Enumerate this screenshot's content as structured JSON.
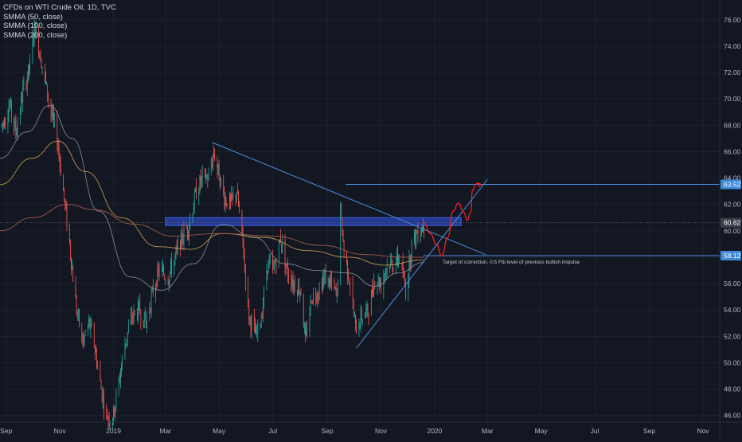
{
  "legend": {
    "title": "CFDs on WTI Crude Oil, 1D, TVC",
    "indicators": [
      "SMMA (50, close)",
      "SMMA (100, close)",
      "SMMA (200, close)"
    ]
  },
  "colors": {
    "background": "#131722",
    "grid": "#1e2230",
    "up": "#26a69a",
    "down": "#ef5350",
    "smma50": "#8a8d99",
    "smma100": "#c9a24e",
    "smma200": "#b0604c",
    "trendline": "#4e8fe0",
    "zone": "#2a45b8",
    "projection": "#ff2020",
    "badge": "#3d8bd9",
    "price_line": "#5a5f6e"
  },
  "chart_data": {
    "type": "candlestick",
    "symbol": "CFDs on WTI Crude Oil",
    "interval": "1D",
    "source": "TVC",
    "ylim": [
      45.5,
      77.5
    ],
    "y_ticks": [
      "76.00",
      "74.00",
      "72.00",
      "70.00",
      "68.00",
      "66.00",
      "64.00",
      "62.00",
      "60.00",
      "58.00",
      "56.00",
      "54.00",
      "52.00",
      "50.00",
      "48.00",
      "46.00"
    ],
    "x_range": [
      "2018-08-25",
      "2020-11-20"
    ],
    "x_ticks": [
      {
        "label": "Sep",
        "date": "2018-09-01"
      },
      {
        "label": "Nov",
        "date": "2018-11-01"
      },
      {
        "label": "2019",
        "date": "2019-01-01"
      },
      {
        "label": "Mar",
        "date": "2019-03-01"
      },
      {
        "label": "May",
        "date": "2019-05-01"
      },
      {
        "label": "Jul",
        "date": "2019-07-01"
      },
      {
        "label": "Sep",
        "date": "2019-09-01"
      },
      {
        "label": "Nov",
        "date": "2019-11-01"
      },
      {
        "label": "2020",
        "date": "2020-01-01"
      },
      {
        "label": "Mar",
        "date": "2020-03-01"
      },
      {
        "label": "May",
        "date": "2020-05-01"
      },
      {
        "label": "Jul",
        "date": "2020-07-01"
      },
      {
        "label": "Sep",
        "date": "2020-09-01"
      },
      {
        "label": "Nov",
        "date": "2020-11-01"
      }
    ],
    "price_path": [
      [
        "2018-08-27",
        68.0
      ],
      [
        "2018-09-05",
        69.5
      ],
      [
        "2018-09-12",
        67.5
      ],
      [
        "2018-09-20",
        70.5
      ],
      [
        "2018-09-28",
        72.5
      ],
      [
        "2018-10-03",
        75.5
      ],
      [
        "2018-10-08",
        74.0
      ],
      [
        "2018-10-15",
        71.5
      ],
      [
        "2018-10-22",
        69.0
      ],
      [
        "2018-10-29",
        67.0
      ],
      [
        "2018-11-05",
        63.0
      ],
      [
        "2018-11-12",
        59.0
      ],
      [
        "2018-11-20",
        54.0
      ],
      [
        "2018-11-27",
        51.5
      ],
      [
        "2018-12-04",
        53.0
      ],
      [
        "2018-12-10",
        51.5
      ],
      [
        "2018-12-18",
        48.0
      ],
      [
        "2018-12-24",
        46.0
      ],
      [
        "2018-12-31",
        45.8
      ],
      [
        "2019-01-07",
        48.5
      ],
      [
        "2019-01-14",
        51.5
      ],
      [
        "2019-01-22",
        53.5
      ],
      [
        "2019-01-30",
        54.0
      ],
      [
        "2019-02-07",
        53.0
      ],
      [
        "2019-02-15",
        55.5
      ],
      [
        "2019-02-22",
        57.0
      ],
      [
        "2019-03-04",
        56.5
      ],
      [
        "2019-03-12",
        58.0
      ],
      [
        "2019-03-20",
        59.5
      ],
      [
        "2019-03-28",
        60.5
      ],
      [
        "2019-04-05",
        63.0
      ],
      [
        "2019-04-12",
        64.0
      ],
      [
        "2019-04-19",
        64.0
      ],
      [
        "2019-04-25",
        66.0
      ],
      [
        "2019-04-30",
        64.5
      ],
      [
        "2019-05-07",
        62.5
      ],
      [
        "2019-05-14",
        62.0
      ],
      [
        "2019-05-21",
        63.0
      ],
      [
        "2019-05-28",
        59.0
      ],
      [
        "2019-06-04",
        53.5
      ],
      [
        "2019-06-12",
        52.0
      ],
      [
        "2019-06-18",
        53.5
      ],
      [
        "2019-06-25",
        57.5
      ],
      [
        "2019-07-02",
        57.0
      ],
      [
        "2019-07-10",
        59.5
      ],
      [
        "2019-07-17",
        57.0
      ],
      [
        "2019-07-25",
        56.0
      ],
      [
        "2019-08-02",
        55.5
      ],
      [
        "2019-08-07",
        51.5
      ],
      [
        "2019-08-14",
        55.0
      ],
      [
        "2019-08-22",
        55.5
      ],
      [
        "2019-08-29",
        56.5
      ],
      [
        "2019-09-05",
        56.0
      ],
      [
        "2019-09-12",
        55.0
      ],
      [
        "2019-09-16",
        61.5
      ],
      [
        "2019-09-20",
        58.5
      ],
      [
        "2019-09-27",
        56.0
      ],
      [
        "2019-10-03",
        52.5
      ],
      [
        "2019-10-10",
        53.5
      ],
      [
        "2019-10-18",
        54.0
      ],
      [
        "2019-10-25",
        56.5
      ],
      [
        "2019-11-01",
        56.0
      ],
      [
        "2019-11-08",
        57.5
      ],
      [
        "2019-11-15",
        57.5
      ],
      [
        "2019-11-22",
        58.0
      ],
      [
        "2019-11-29",
        55.5
      ],
      [
        "2019-12-06",
        59.0
      ],
      [
        "2019-12-13",
        60.0
      ],
      [
        "2019-12-20",
        60.5
      ]
    ],
    "smma": [
      {
        "name": "SMMA (50, close)",
        "points": [
          [
            "2018-08-25",
            65.5
          ],
          [
            "2018-09-25",
            67.5
          ],
          [
            "2018-10-20",
            69.5
          ],
          [
            "2018-11-15",
            67.0
          ],
          [
            "2018-12-15",
            61.5
          ],
          [
            "2019-01-20",
            56.5
          ],
          [
            "2019-02-25",
            55.5
          ],
          [
            "2019-04-01",
            57.5
          ],
          [
            "2019-05-05",
            60.5
          ],
          [
            "2019-06-10",
            59.5
          ],
          [
            "2019-07-15",
            57.5
          ],
          [
            "2019-08-20",
            57.0
          ],
          [
            "2019-09-25",
            56.8
          ],
          [
            "2019-10-25",
            55.8
          ],
          [
            "2019-11-20",
            56.8
          ],
          [
            "2019-12-20",
            57.6
          ]
        ]
      },
      {
        "name": "SMMA (100, close)",
        "points": [
          [
            "2018-08-25",
            63.5
          ],
          [
            "2018-09-30",
            65.5
          ],
          [
            "2018-10-30",
            66.8
          ],
          [
            "2018-11-30",
            64.5
          ],
          [
            "2019-01-10",
            61.0
          ],
          [
            "2019-02-20",
            58.8
          ],
          [
            "2019-03-30",
            58.6
          ],
          [
            "2019-05-05",
            59.8
          ],
          [
            "2019-06-20",
            59.5
          ],
          [
            "2019-08-10",
            58.5
          ],
          [
            "2019-09-25",
            58.0
          ],
          [
            "2019-11-05",
            57.4
          ],
          [
            "2019-12-20",
            57.8
          ]
        ]
      },
      {
        "name": "SMMA (200, close)",
        "points": [
          [
            "2018-08-25",
            60.0
          ],
          [
            "2018-10-01",
            61.0
          ],
          [
            "2018-11-10",
            62.0
          ],
          [
            "2018-12-10",
            61.6
          ],
          [
            "2019-01-25",
            60.5
          ],
          [
            "2019-03-10",
            59.6
          ],
          [
            "2019-05-01",
            59.8
          ],
          [
            "2019-07-01",
            59.6
          ],
          [
            "2019-08-25",
            58.9
          ],
          [
            "2019-10-15",
            58.2
          ],
          [
            "2019-11-25",
            58.0
          ],
          [
            "2019-12-20",
            58.0
          ]
        ]
      }
    ],
    "annotations": {
      "resistance_zone": {
        "from": "2019-03-01",
        "to": "2020-01-31",
        "low": 60.4,
        "high": 61.0
      },
      "descending_trendline": [
        [
          "2019-04-23",
          66.7
        ],
        [
          "2020-02-28",
          58.2
        ]
      ],
      "ascending_trendline": [
        [
          "2019-10-04",
          51.1
        ],
        [
          "2020-03-01",
          63.9
        ]
      ],
      "target_line": {
        "from": "2019-12-19",
        "to": "2020-11-20",
        "price": 58.12
      },
      "upper_line": {
        "from": "2019-09-22",
        "to": "2020-11-20",
        "price": 63.52
      },
      "projection": [
        [
          "2019-12-20",
          60.6
        ],
        [
          "2019-12-27",
          59.8
        ],
        [
          "2020-01-03",
          59.0
        ],
        [
          "2020-01-09",
          58.1
        ],
        [
          "2020-01-16",
          59.5
        ],
        [
          "2020-01-22",
          61.5
        ],
        [
          "2020-01-28",
          62.1
        ],
        [
          "2020-02-03",
          61.4
        ],
        [
          "2020-02-07",
          60.8
        ],
        [
          "2020-02-11",
          61.4
        ],
        [
          "2020-02-13",
          63.1
        ],
        [
          "2020-02-18",
          63.6
        ],
        [
          "2020-02-22",
          63.5
        ]
      ],
      "target_note": "Target of correction. 0.5 Fib level of previous bullish impulse",
      "price_badges": [
        {
          "price": 63.52,
          "label": "63.52"
        },
        {
          "price": 60.62,
          "label": "60.62"
        },
        {
          "price": 58.12,
          "label": "58.12"
        }
      ],
      "current_price": 60.62
    }
  }
}
